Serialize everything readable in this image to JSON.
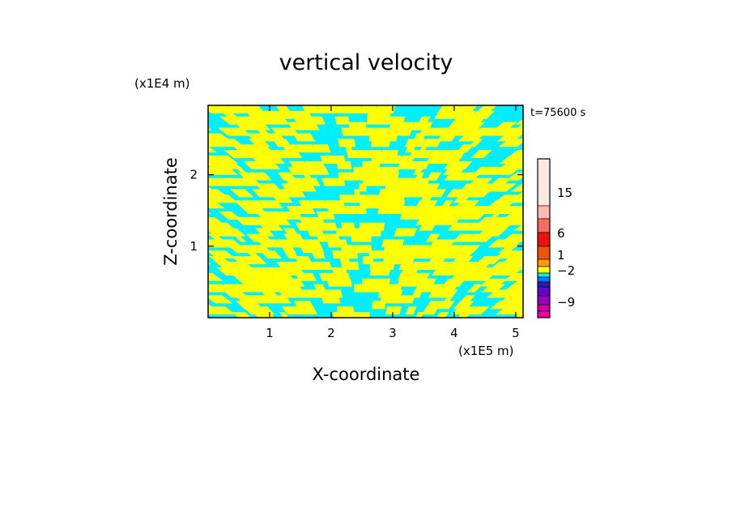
{
  "chart_data": {
    "type": "heatmap",
    "title": "vertical velocity",
    "xlabel": "X-coordinate",
    "ylabel": "Z-coordinate",
    "x_unit": "(x1E5 m)",
    "y_unit": "(x1E4 m)",
    "time_label": "t=75600 s",
    "xlim": [
      0,
      5.12
    ],
    "ylim": [
      0,
      2.97
    ],
    "x_ticks": [
      1,
      2,
      3,
      4,
      5
    ],
    "y_ticks": [
      1,
      2
    ],
    "field_colors": [
      "#00eeff",
      "#ffff00"
    ],
    "colorbar": {
      "labels": [
        15,
        6,
        1,
        -2,
        -9
      ],
      "levels": [
        {
          "color": "#ffe8e0"
        },
        {
          "color": "#ffb9ae"
        },
        {
          "color": "#f56b5e"
        },
        {
          "color": "#ee1111"
        },
        {
          "color": "#ee5500"
        },
        {
          "color": "#ff9900"
        },
        {
          "color": "#ffff00"
        },
        {
          "color": "#00eeff"
        },
        {
          "color": "#0077ff"
        },
        {
          "color": "#2222bb"
        },
        {
          "color": "#6600cc"
        },
        {
          "color": "#9900bb"
        },
        {
          "color": "#cc00aa"
        },
        {
          "color": "#ee00aa"
        }
      ]
    }
  }
}
